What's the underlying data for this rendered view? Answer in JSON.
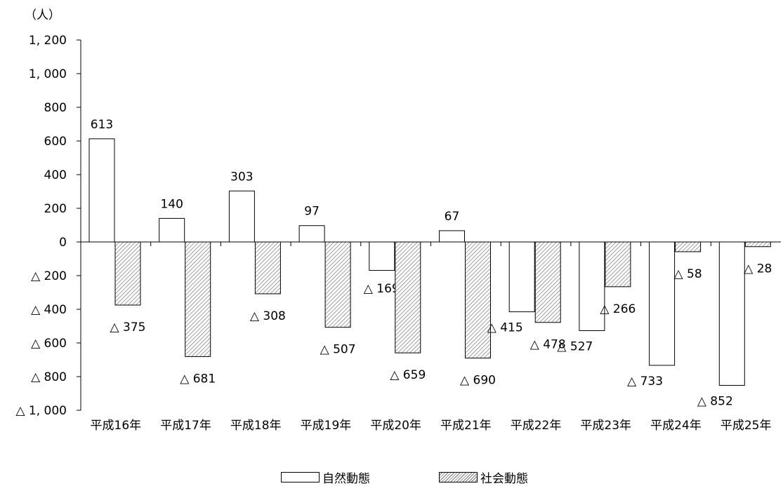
{
  "chart_data": {
    "type": "bar",
    "unit_label": "（人）",
    "categories": [
      "平成16年",
      "平成17年",
      "平成18年",
      "平成19年",
      "平成20年",
      "平成21年",
      "平成22年",
      "平成23年",
      "平成24年",
      "平成25年"
    ],
    "series": [
      {
        "name": "自然動態",
        "values": [
          613,
          140,
          303,
          97,
          -169,
          67,
          -415,
          -527,
          -733,
          -852
        ],
        "labels": [
          "613",
          "140",
          "303",
          "97",
          "△ 169",
          "67",
          "△ 415",
          "△ 527",
          "△ 733",
          "△ 852"
        ]
      },
      {
        "name": "社会動態",
        "values": [
          -375,
          -681,
          -308,
          -507,
          -659,
          -690,
          -478,
          -266,
          -58,
          -28
        ],
        "labels": [
          "△ 375",
          "△ 681",
          "△ 308",
          "△ 507",
          "△ 659",
          "△ 690",
          "△ 478",
          "△ 266",
          "△ 58",
          "△ 28"
        ]
      }
    ],
    "yticks": [
      1200,
      1000,
      800,
      600,
      400,
      200,
      0,
      -200,
      -400,
      -600,
      -800,
      -1000
    ],
    "ytick_labels": [
      "1, 200",
      "1, 000",
      "800",
      "600",
      "400",
      "200",
      "0",
      "△ 200",
      "△ 400",
      "△ 600",
      "△ 800",
      "△ 1, 000"
    ],
    "ylim": [
      -1000,
      1200
    ],
    "colors": {
      "natural": "#ffffff",
      "social_hatch": "#777777",
      "axis": "#000000"
    },
    "legend_position": "bottom-center"
  }
}
